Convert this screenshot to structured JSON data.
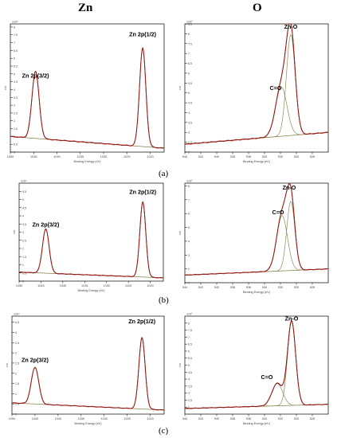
{
  "columns": [
    "Zn",
    "O"
  ],
  "row_labels": [
    "(a)",
    "(b)",
    "(c)"
  ],
  "chart_data": [
    {
      "type": "line",
      "row": "(a)",
      "column": "Zn",
      "xlabel": "Binding Energy (eV)",
      "ylabel": "c/s",
      "y_exponent": "x10⁴",
      "xlim": [
        1050,
        1017
      ],
      "ylim": [
        0,
        8.2
      ],
      "xticks": [
        1050,
        1045,
        1040,
        1035,
        1030,
        1025,
        1020
      ],
      "yticks": [
        0,
        0.5,
        1,
        1.5,
        2,
        2.5,
        3,
        3.5,
        4,
        4.5,
        5,
        5.5,
        6,
        6.5,
        7,
        7.5,
        8
      ],
      "annotations": [
        {
          "text": "Zn 2p(3/2)",
          "x": 1044.6,
          "y": 4.75
        },
        {
          "text": "Zn 2p(1/2)",
          "x": 1021.6,
          "y": 7.4
        }
      ],
      "peaks": [
        {
          "center": 1044.6,
          "height": 4.3,
          "fwhm": 1.8
        },
        {
          "center": 1021.6,
          "height": 6.3,
          "fwhm": 1.6
        }
      ],
      "background": {
        "start": 1.0,
        "end": 0.25
      },
      "series": [
        {
          "kind": "measured"
        },
        {
          "kind": "fit"
        },
        {
          "kind": "background"
        }
      ]
    },
    {
      "type": "line",
      "row": "(a)",
      "column": "O",
      "xlabel": "Binding Energy (eV)",
      "ylabel": "c/s",
      "y_exponent": "x10³",
      "xlim": [
        544,
        526
      ],
      "ylim": [
        2,
        8.5
      ],
      "xticks": [
        544,
        542,
        540,
        538,
        536,
        534,
        532,
        530,
        528
      ],
      "yticks": [
        2,
        2.5,
        3,
        3.5,
        4,
        4.5,
        5,
        5.5,
        6,
        6.5,
        7,
        7.5,
        8,
        8.5
      ],
      "annotations": [
        {
          "text": "Zn-O",
          "x": 530.7,
          "y": 8.25
        },
        {
          "text": "C=O",
          "x": 532.6,
          "y": 5.15
        }
      ],
      "components": [
        {
          "center": 530.7,
          "height": 5.1,
          "fwhm": 1.3
        },
        {
          "center": 531.9,
          "height": 2.5,
          "fwhm": 1.7
        }
      ],
      "background": {
        "start": 2.4,
        "end": 3.0
      },
      "series": [
        {
          "kind": "measured"
        },
        {
          "kind": "fit"
        },
        {
          "kind": "component"
        },
        {
          "kind": "component"
        },
        {
          "kind": "background"
        }
      ]
    },
    {
      "type": "line",
      "row": "(b)",
      "column": "Zn",
      "xlabel": "Binding Energy (eV)",
      "ylabel": "c/s",
      "y_exponent": "x10⁴",
      "xlim": [
        1050,
        1017
      ],
      "ylim": [
        0,
        6
      ],
      "xticks": [
        1050,
        1045,
        1040,
        1035,
        1030,
        1025,
        1020
      ],
      "yticks": [
        0,
        0.5,
        1,
        1.5,
        2,
        2.5,
        3,
        3.5,
        4,
        4.5,
        5,
        5.5
      ],
      "annotations": [
        {
          "text": "Zn 2p(3/2)",
          "x": 1043.9,
          "y": 3.35
        },
        {
          "text": "Zn 2p(1/2)",
          "x": 1021.7,
          "y": 5.35
        }
      ],
      "peaks": [
        {
          "center": 1043.9,
          "height": 2.7,
          "fwhm": 1.8
        },
        {
          "center": 1021.7,
          "height": 4.6,
          "fwhm": 1.6
        }
      ],
      "background": {
        "start": 0.55,
        "end": 0.2
      },
      "series": [
        {
          "kind": "measured"
        },
        {
          "kind": "fit"
        },
        {
          "kind": "background"
        }
      ]
    },
    {
      "type": "line",
      "row": "(b)",
      "column": "O",
      "xlabel": "Binding Energy (eV)",
      "ylabel": "c/s",
      "y_exponent": "x10³",
      "xlim": [
        544,
        526
      ],
      "ylim": [
        1,
        8.2
      ],
      "xticks": [
        544,
        542,
        540,
        538,
        536,
        534,
        532,
        530,
        528
      ],
      "yticks": [
        1,
        2,
        3,
        4,
        5,
        6,
        7,
        8
      ],
      "annotations": [
        {
          "text": "Zn-O",
          "x": 530.9,
          "y": 7.75
        },
        {
          "text": "C=O",
          "x": 532.3,
          "y": 5.95
        }
      ],
      "components": [
        {
          "center": 530.7,
          "height": 5.0,
          "fwhm": 1.2
        },
        {
          "center": 531.8,
          "height": 4.0,
          "fwhm": 1.6
        }
      ],
      "background": {
        "start": 1.55,
        "end": 2.0
      },
      "series": [
        {
          "kind": "measured"
        },
        {
          "kind": "fit"
        },
        {
          "kind": "component"
        },
        {
          "kind": "component"
        },
        {
          "kind": "background"
        }
      ]
    },
    {
      "type": "line",
      "row": "(c)",
      "column": "Zn",
      "xlabel": "Binding Energy (eV)",
      "ylabel": "c/s",
      "y_exponent": "x10⁴",
      "xlim": [
        1050,
        1017
      ],
      "ylim": [
        0,
        4.8
      ],
      "xticks": [
        1050,
        1045,
        1040,
        1035,
        1030,
        1025,
        1020
      ],
      "yticks": [
        0,
        0.5,
        1,
        1.5,
        2,
        2.5,
        3,
        3.5,
        4,
        4.5
      ],
      "annotations": [
        {
          "text": "Zn 2p(3/2)",
          "x": 1045.0,
          "y": 2.55
        },
        {
          "text": "Zn 2p(1/2)",
          "x": 1021.8,
          "y": 4.45
        }
      ],
      "peaks": [
        {
          "center": 1045.0,
          "height": 1.8,
          "fwhm": 1.9
        },
        {
          "center": 1021.8,
          "height": 3.5,
          "fwhm": 1.6
        }
      ],
      "background": {
        "start": 0.55,
        "end": 0.2
      },
      "series": [
        {
          "kind": "measured"
        },
        {
          "kind": "fit"
        },
        {
          "kind": "background"
        }
      ]
    },
    {
      "type": "line",
      "row": "(c)",
      "column": "O",
      "xlabel": "Binding Energy (eV)",
      "ylabel": "c/s",
      "y_exponent": "x10³",
      "xlim": [
        544,
        526
      ],
      "ylim": [
        1.5,
        8.5
      ],
      "xticks": [
        544,
        542,
        540,
        538,
        536,
        534,
        532,
        530,
        528
      ],
      "yticks": [
        2,
        2.5,
        3,
        3.5,
        4,
        4.5,
        5,
        5.5,
        6,
        6.5,
        7,
        7.5,
        8
      ],
      "annotations": [
        {
          "text": "Zn-O",
          "x": 530.6,
          "y": 8.2
        },
        {
          "text": "C=O",
          "x": 533.7,
          "y": 4.0
        }
      ],
      "components": [
        {
          "center": 530.6,
          "height": 6.0,
          "fwhm": 1.2
        },
        {
          "center": 532.4,
          "height": 1.6,
          "fwhm": 1.6
        }
      ],
      "background": {
        "start": 1.9,
        "end": 2.2
      },
      "series": [
        {
          "kind": "measured"
        },
        {
          "kind": "fit"
        },
        {
          "kind": "component"
        },
        {
          "kind": "component"
        },
        {
          "kind": "background"
        }
      ]
    }
  ],
  "colors": {
    "measured": "#b0281e",
    "fit": "#8e1a14",
    "component": "#8c8a55",
    "background": "#7d7a3e",
    "axis": "#000000",
    "tick_text": "#444444"
  }
}
